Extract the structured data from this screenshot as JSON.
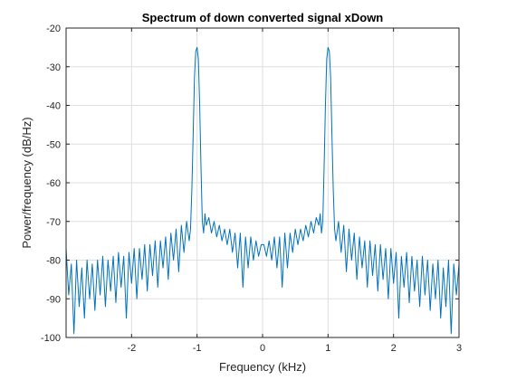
{
  "chart_data": {
    "type": "line",
    "title": "Spectrum of down converted signal xDown",
    "xlabel": "Frequency (kHz)",
    "ylabel": "Power/frequency (dB/Hz)",
    "xlim": [
      -3,
      3
    ],
    "ylim": [
      -100,
      -20
    ],
    "xticks": [
      -2,
      -1,
      0,
      1,
      2,
      3
    ],
    "yticks": [
      -100,
      -90,
      -80,
      -70,
      -60,
      -50,
      -40,
      -30,
      -20
    ],
    "grid": true,
    "line_color": "#0072bd",
    "series": [
      {
        "x": [
          -3.0,
          -2.96,
          -2.92,
          -2.88,
          -2.84,
          -2.8,
          -2.76,
          -2.72,
          -2.68,
          -2.64,
          -2.6,
          -2.56,
          -2.52,
          -2.48,
          -2.44,
          -2.4,
          -2.36,
          -2.32,
          -2.28,
          -2.24,
          -2.2,
          -2.16,
          -2.12,
          -2.08,
          -2.04,
          -2.0,
          -1.96,
          -1.92,
          -1.88,
          -1.84,
          -1.8,
          -1.76,
          -1.72,
          -1.68,
          -1.64,
          -1.6,
          -1.56,
          -1.52,
          -1.48,
          -1.44,
          -1.4,
          -1.36,
          -1.32,
          -1.28,
          -1.24,
          -1.2,
          -1.16,
          -1.12,
          -1.1,
          -1.08,
          -1.06,
          -1.04,
          -1.02,
          -1.0,
          -0.98,
          -0.96,
          -0.94,
          -0.92,
          -0.9,
          -0.88,
          -0.86,
          -0.82,
          -0.78,
          -0.74,
          -0.7,
          -0.66,
          -0.62,
          -0.58,
          -0.54,
          -0.5,
          -0.46,
          -0.42,
          -0.38,
          -0.34,
          -0.3,
          -0.26,
          -0.22,
          -0.18,
          -0.14,
          -0.1,
          -0.06,
          -0.02,
          0.02,
          0.06,
          0.1,
          0.14,
          0.18,
          0.22,
          0.26,
          0.3,
          0.34,
          0.38,
          0.42,
          0.46,
          0.5,
          0.54,
          0.58,
          0.62,
          0.66,
          0.7,
          0.74,
          0.78,
          0.82,
          0.86,
          0.88,
          0.9,
          0.92,
          0.94,
          0.96,
          0.98,
          1.0,
          1.02,
          1.04,
          1.06,
          1.08,
          1.1,
          1.12,
          1.16,
          1.2,
          1.24,
          1.28,
          1.32,
          1.36,
          1.4,
          1.44,
          1.48,
          1.52,
          1.56,
          1.6,
          1.64,
          1.68,
          1.72,
          1.76,
          1.8,
          1.84,
          1.88,
          1.92,
          1.96,
          2.0,
          2.04,
          2.08,
          2.12,
          2.16,
          2.2,
          2.24,
          2.28,
          2.32,
          2.36,
          2.4,
          2.44,
          2.48,
          2.52,
          2.56,
          2.6,
          2.64,
          2.68,
          2.72,
          2.76,
          2.8,
          2.84,
          2.88,
          2.92,
          2.96,
          3.0
        ],
        "y": [
          -77,
          -89,
          -81,
          -99,
          -80,
          -92,
          -82,
          -95,
          -80,
          -90,
          -81,
          -93,
          -80,
          -89,
          -79,
          -92,
          -80,
          -88,
          -79,
          -91,
          -78,
          -87,
          -79,
          -95,
          -78,
          -86,
          -77,
          -90,
          -77,
          -85,
          -76,
          -88,
          -76,
          -84,
          -75,
          -87,
          -75,
          -82,
          -74,
          -85,
          -73,
          -80,
          -72,
          -83,
          -71,
          -78,
          -70,
          -75,
          -72,
          -62,
          -48,
          -33,
          -26,
          -25,
          -28,
          -40,
          -56,
          -70,
          -73,
          -68,
          -71,
          -69,
          -73,
          -70,
          -74,
          -71,
          -75,
          -72,
          -76,
          -72,
          -78,
          -73,
          -82,
          -73,
          -87,
          -74,
          -82,
          -74,
          -80,
          -75,
          -79,
          -76,
          -76,
          -79,
          -75,
          -80,
          -74,
          -82,
          -74,
          -87,
          -73,
          -82,
          -73,
          -78,
          -72,
          -76,
          -72,
          -75,
          -71,
          -74,
          -70,
          -73,
          -69,
          -71,
          -68,
          -73,
          -70,
          -56,
          -40,
          -28,
          -25,
          -26,
          -33,
          -48,
          -62,
          -72,
          -75,
          -70,
          -78,
          -71,
          -83,
          -72,
          -80,
          -73,
          -85,
          -74,
          -82,
          -75,
          -87,
          -75,
          -84,
          -76,
          -88,
          -76,
          -85,
          -77,
          -90,
          -77,
          -86,
          -78,
          -95,
          -79,
          -87,
          -78,
          -91,
          -79,
          -88,
          -80,
          -92,
          -79,
          -89,
          -80,
          -93,
          -81,
          -90,
          -80,
          -95,
          -82,
          -92,
          -80,
          -99,
          -81,
          -89,
          -81
        ]
      }
    ]
  }
}
